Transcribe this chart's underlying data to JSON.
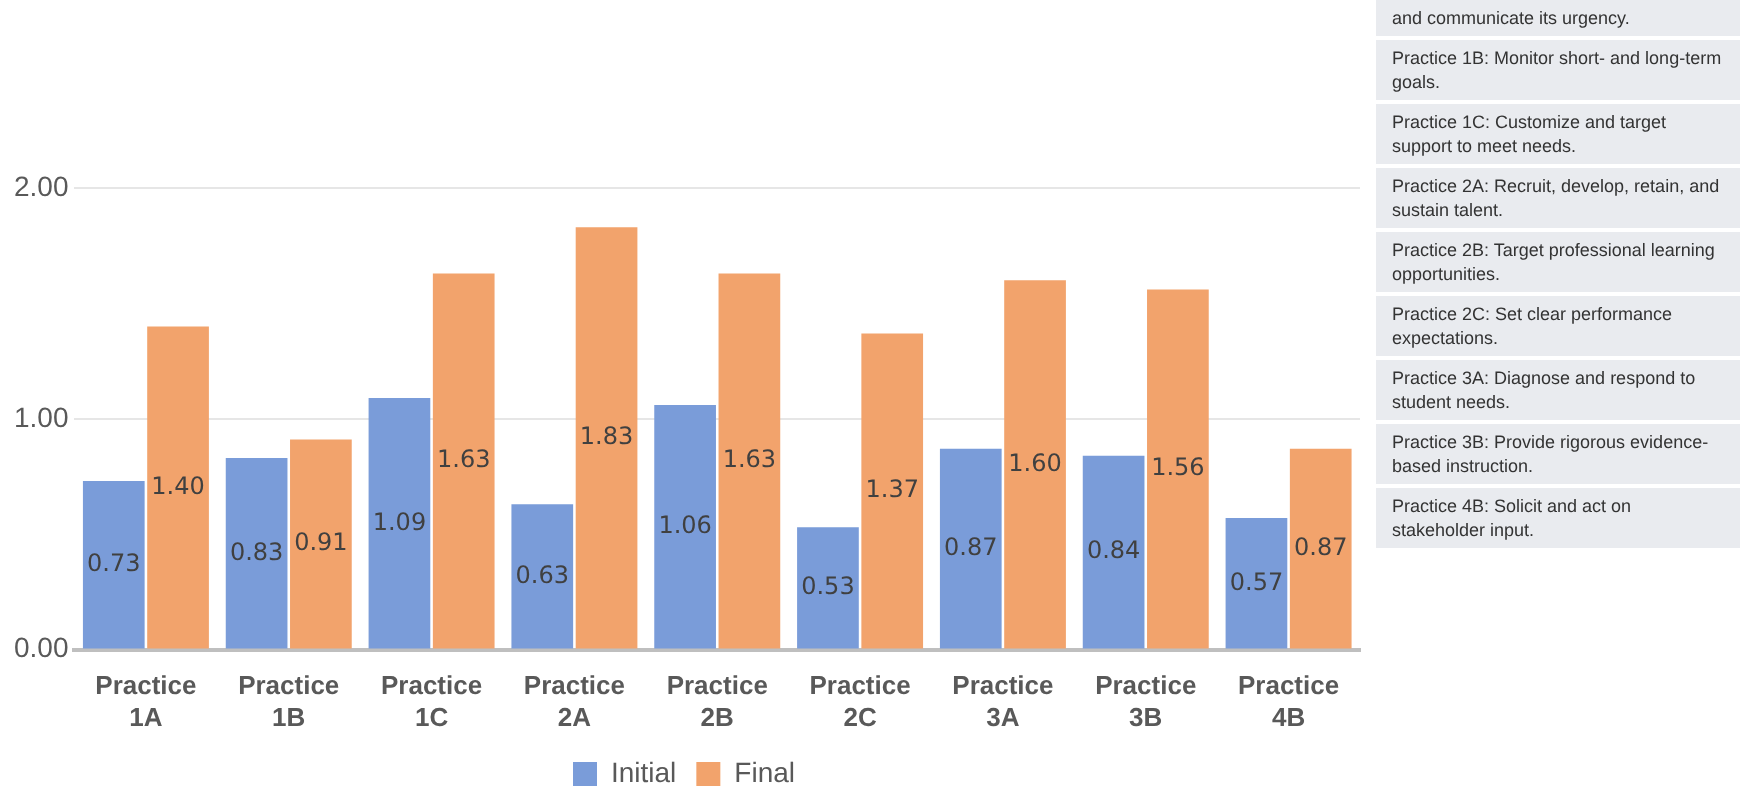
{
  "chart_data": {
    "type": "bar",
    "categories": [
      "Practice 1A",
      "Practice 1B",
      "Practice 1C",
      "Practice 2A",
      "Practice 2B",
      "Practice 2C",
      "Practice 3A",
      "Practice 3B",
      "Practice 4B"
    ],
    "series": [
      {
        "name": "Initial",
        "color": "#7a9cd9",
        "values": [
          0.73,
          0.83,
          1.09,
          0.63,
          1.06,
          0.53,
          0.87,
          0.84,
          0.57
        ],
        "value_labels": [
          "0.73",
          "0.83",
          "1.09",
          "0.63",
          "1.06",
          "0.53",
          "0.87",
          "0.84",
          "0.57"
        ]
      },
      {
        "name": "Final",
        "color": "#f2a36c",
        "values": [
          1.4,
          0.91,
          1.63,
          1.83,
          1.63,
          1.37,
          1.6,
          1.56,
          0.87
        ],
        "value_labels": [
          "1.40",
          "0.91",
          "1.63",
          "1.83",
          "1.63",
          "1.37",
          "1.60",
          "1.56",
          "0.87"
        ]
      }
    ],
    "ylim": [
      0,
      2
    ],
    "yticks": [
      {
        "value": 0,
        "label": "0.00"
      },
      {
        "value": 1,
        "label": "1.00"
      },
      {
        "value": 2,
        "label": "2.00"
      }
    ],
    "grid": "y",
    "legend": "bottom",
    "annotations": [
      "and communicate its urgency.",
      "Practice 1B: Monitor short- and long-term goals.",
      "Practice 1C: Customize and target support to meet needs.",
      "Practice 2A: Recruit, develop, retain, and sustain talent.",
      "Practice 2B: Target professional learning opportunities.",
      "Practice 2C: Set clear performance expectations.",
      "Practice 3A: Diagnose and respond to student needs.",
      "Practice 3B: Provide rigorous evidence-based instruction.",
      "Practice 4B: Solicit and act on stakeholder input."
    ]
  }
}
